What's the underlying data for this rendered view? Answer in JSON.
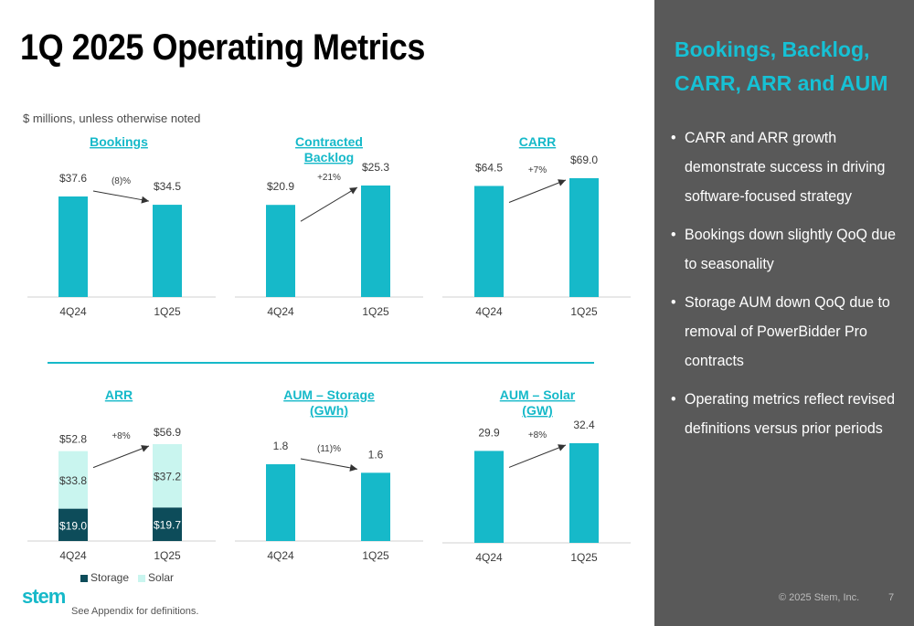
{
  "page": {
    "title": "1Q 2025 Operating Metrics",
    "units_note": "$ millions, unless otherwise noted",
    "footnote": "See Appendix for definitions.",
    "logo_text": "stem",
    "copyright": "© 2025 Stem, Inc.",
    "page_number": "7"
  },
  "panel": {
    "title": "Bookings, Backlog, CARR, ARR and AUM",
    "bullets": [
      "CARR and ARR growth demonstrate success in driving software-focused strategy",
      "Bookings down slightly QoQ due to seasonality",
      "Storage AUM down QoQ due to removal of PowerBidder Pro contracts",
      "Operating metrics reflect revised definitions versus prior periods"
    ]
  },
  "colors": {
    "bar": "#16b9c9",
    "storage": "#0d4c5a",
    "solar": "#c9f5ef",
    "title": "#16b9c9",
    "panel_bg": "#595959"
  },
  "legend": {
    "storage": "Storage",
    "solar": "Solar"
  },
  "chart_data": [
    {
      "type": "bar",
      "title": [
        "Bookings"
      ],
      "categories": [
        "4Q24",
        "1Q25"
      ],
      "values": [
        37.6,
        34.5
      ],
      "labels": [
        "$37.6",
        "$34.5"
      ],
      "change": "(8)%",
      "direction": "down"
    },
    {
      "type": "bar",
      "title": [
        "Contracted",
        "Backlog"
      ],
      "categories": [
        "4Q24",
        "1Q25"
      ],
      "values": [
        20.9,
        25.3
      ],
      "labels": [
        "$20.9",
        "$25.3"
      ],
      "change": "+21%",
      "direction": "up"
    },
    {
      "type": "bar",
      "title": [
        "CARR"
      ],
      "categories": [
        "4Q24",
        "1Q25"
      ],
      "values": [
        64.5,
        69.0
      ],
      "labels": [
        "$64.5",
        "$69.0"
      ],
      "change": "+7%",
      "direction": "up"
    },
    {
      "type": "bar",
      "stacked": true,
      "title": [
        "ARR"
      ],
      "categories": [
        "4Q24",
        "1Q25"
      ],
      "series": [
        {
          "name": "Storage",
          "values": [
            19.0,
            19.7
          ],
          "labels": [
            "$19.0",
            "$19.7"
          ]
        },
        {
          "name": "Solar",
          "values": [
            33.8,
            37.2
          ],
          "labels": [
            "$33.8",
            "$37.2"
          ]
        }
      ],
      "totals": [
        52.8,
        56.9
      ],
      "total_labels": [
        "$52.8",
        "$56.9"
      ],
      "change": "+8%",
      "direction": "up",
      "legend": "bottom"
    },
    {
      "type": "bar",
      "title": [
        "AUM – Storage",
        "(GWh)"
      ],
      "categories": [
        "4Q24",
        "1Q25"
      ],
      "values": [
        1.8,
        1.6
      ],
      "labels": [
        "1.8",
        "1.6"
      ],
      "change": "(11)%",
      "direction": "down"
    },
    {
      "type": "bar",
      "title": [
        "AUM – Solar",
        "(GW)"
      ],
      "categories": [
        "4Q24",
        "1Q25"
      ],
      "values": [
        29.9,
        32.4
      ],
      "labels": [
        "29.9",
        "32.4"
      ],
      "change": "+8%",
      "direction": "up"
    }
  ]
}
